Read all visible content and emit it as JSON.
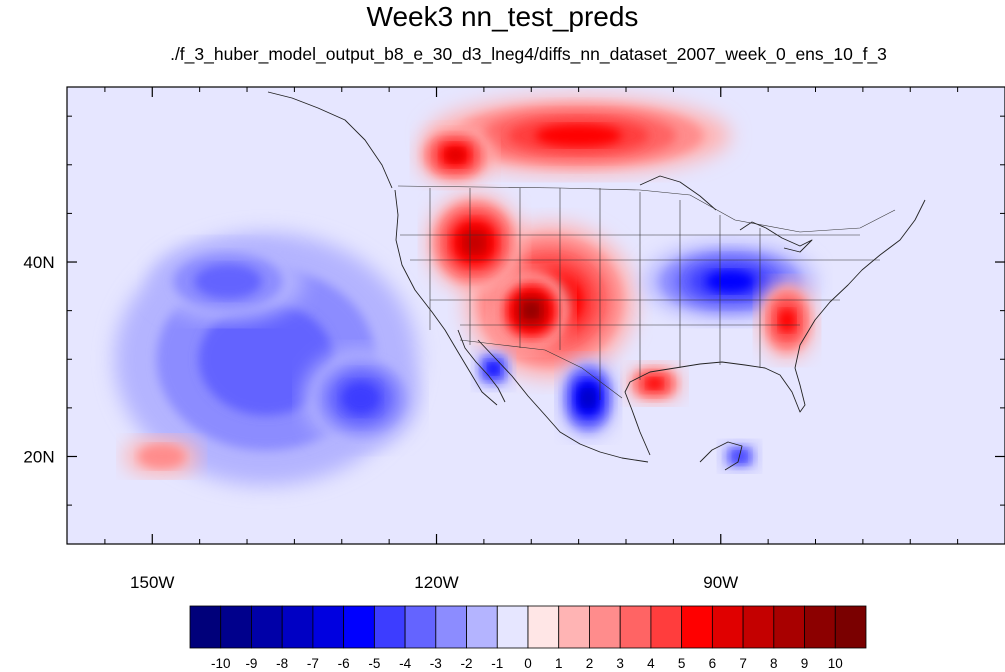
{
  "chart_data": {
    "type": "heatmap",
    "title": "Week3 nn_test_preds",
    "subtitle": "./f_3_huber_model_output_b8_e_30_d3_lneg4/diffs_nn_dataset_2007_week_0_ens_10_f_3",
    "x_ticks": [
      {
        "label": "150W",
        "lon": -150
      },
      {
        "label": "120W",
        "lon": -120
      },
      {
        "label": "90W",
        "lon": -90
      }
    ],
    "y_ticks": [
      {
        "label": "40N",
        "lat": 40
      },
      {
        "label": "20N",
        "lat": 20
      }
    ],
    "lon_range": [
      -159,
      -60
    ],
    "lat_range": [
      11,
      58
    ],
    "colorbar": {
      "levels": [
        "-10",
        "-9",
        "-8",
        "-7",
        "-6",
        "-5",
        "-4",
        "-3",
        "-2",
        "-1",
        "0",
        "1",
        "2",
        "3",
        "4",
        "5",
        "6",
        "7",
        "8",
        "9",
        "10"
      ],
      "colors": [
        "#00007a",
        "#00008c",
        "#0000a8",
        "#0000c4",
        "#0000e0",
        "#0000ff",
        "#3d3dff",
        "#6464ff",
        "#8c8cff",
        "#b4b4ff",
        "#e6e6ff",
        "#ffe6e6",
        "#ffb4b4",
        "#ff8c8c",
        "#ff6464",
        "#ff3d3d",
        "#ff0000",
        "#e00000",
        "#c40000",
        "#a80000",
        "#8c0000",
        "#7a0000"
      ]
    },
    "anomalies": [
      {
        "lon": -138,
        "lat": 30,
        "rx": 16,
        "ry": 13,
        "value": -3
      },
      {
        "lon": -128,
        "lat": 26,
        "rx": 6,
        "ry": 5,
        "value": -4
      },
      {
        "lon": -142,
        "lat": 38,
        "rx": 8,
        "ry": 4,
        "value": -3
      },
      {
        "lon": -108,
        "lat": 36,
        "rx": 9,
        "ry": 8,
        "value": 6
      },
      {
        "lon": -110,
        "lat": 35,
        "rx": 4,
        "ry": 4,
        "value": 9
      },
      {
        "lon": -116,
        "lat": 42,
        "rx": 5,
        "ry": 5,
        "value": 7
      },
      {
        "lon": -105,
        "lat": 53,
        "rx": 16,
        "ry": 4,
        "value": 5
      },
      {
        "lon": -118,
        "lat": 51,
        "rx": 4,
        "ry": 3,
        "value": 6
      },
      {
        "lon": -104,
        "lat": 26,
        "rx": 3,
        "ry": 4,
        "value": -7
      },
      {
        "lon": -114,
        "lat": 29,
        "rx": 2,
        "ry": 2,
        "value": -5
      },
      {
        "lon": -89,
        "lat": 38,
        "rx": 9,
        "ry": 4,
        "value": -5
      },
      {
        "lon": -97,
        "lat": 27.5,
        "rx": 3,
        "ry": 2,
        "value": 5
      },
      {
        "lon": -83,
        "lat": 34,
        "rx": 3,
        "ry": 4,
        "value": 5
      },
      {
        "lon": -88,
        "lat": 20,
        "rx": 2,
        "ry": 1.5,
        "value": -4
      },
      {
        "lon": -149,
        "lat": 20,
        "rx": 4,
        "ry": 2,
        "value": 2
      }
    ]
  }
}
